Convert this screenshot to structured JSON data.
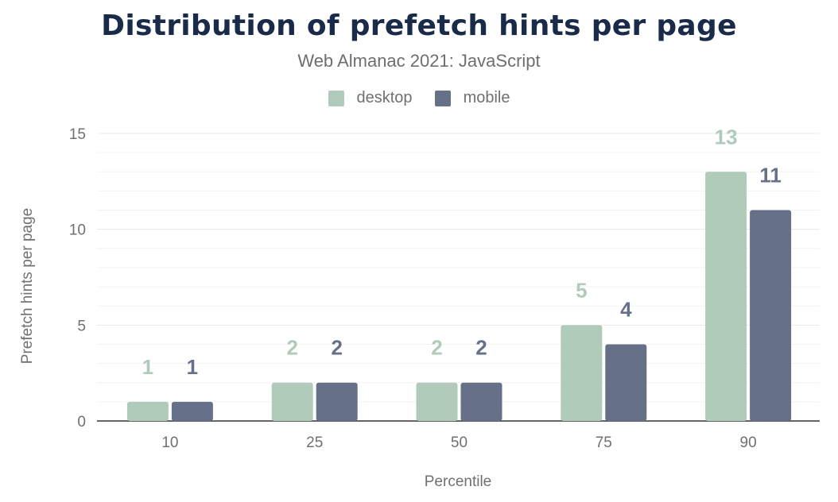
{
  "chart_data": {
    "type": "bar",
    "title": "Distribution of prefetch hints per page",
    "subtitle": "Web Almanac 2021: JavaScript",
    "xlabel": "Percentile",
    "ylabel": "Prefetch hints per page",
    "categories": [
      "10",
      "25",
      "50",
      "75",
      "90"
    ],
    "series": [
      {
        "name": "desktop",
        "color": "#b0cbba",
        "values": [
          1,
          2,
          2,
          5,
          13
        ]
      },
      {
        "name": "mobile",
        "color": "#667189",
        "values": [
          1,
          2,
          2,
          4,
          11
        ]
      }
    ],
    "ylim": [
      0,
      15
    ],
    "yticks": [
      0,
      5,
      10,
      15
    ],
    "grid": true,
    "legend": "top-center"
  }
}
